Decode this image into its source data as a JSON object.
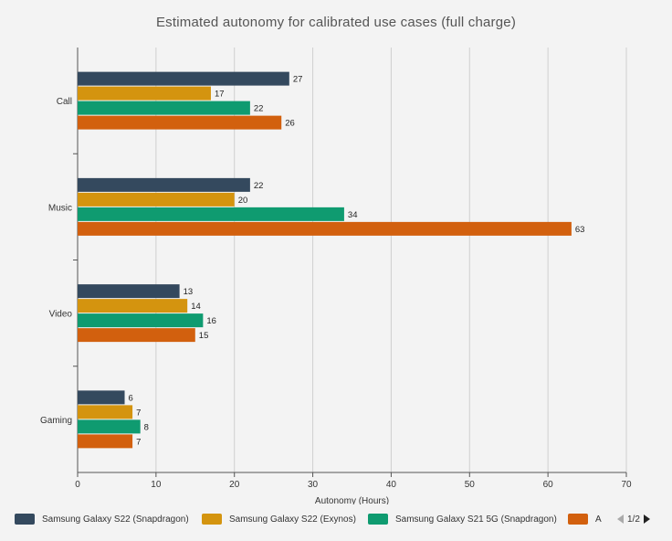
{
  "chart_data": {
    "type": "bar",
    "orientation": "horizontal",
    "title": "Estimated autonomy for calibrated use cases (full charge)",
    "xlabel": "Autonomy (Hours)",
    "ylabel": "",
    "xlim": [
      0,
      70
    ],
    "xticks": [
      "0",
      "10",
      "20",
      "30",
      "40",
      "50",
      "60",
      "70"
    ],
    "categories": [
      "Call",
      "Music",
      "Video",
      "Gaming"
    ],
    "grid": true,
    "legend_position": "bottom",
    "series": [
      {
        "name": "Samsung Galaxy S22 (Snapdragon)",
        "color": "#34495e",
        "values": [
          27,
          22,
          13,
          6
        ]
      },
      {
        "name": "Samsung Galaxy S22 (Exynos)",
        "color": "#d4940f",
        "values": [
          17,
          20,
          14,
          7
        ]
      },
      {
        "name": "Samsung Galaxy S21 5G (Snapdragon)",
        "color": "#0f9b70",
        "values": [
          22,
          34,
          16,
          8
        ]
      },
      {
        "name": "A",
        "color": "#d2600e",
        "values": [
          26,
          63,
          15,
          7
        ]
      }
    ]
  },
  "legend": {
    "pager": "1/2"
  }
}
